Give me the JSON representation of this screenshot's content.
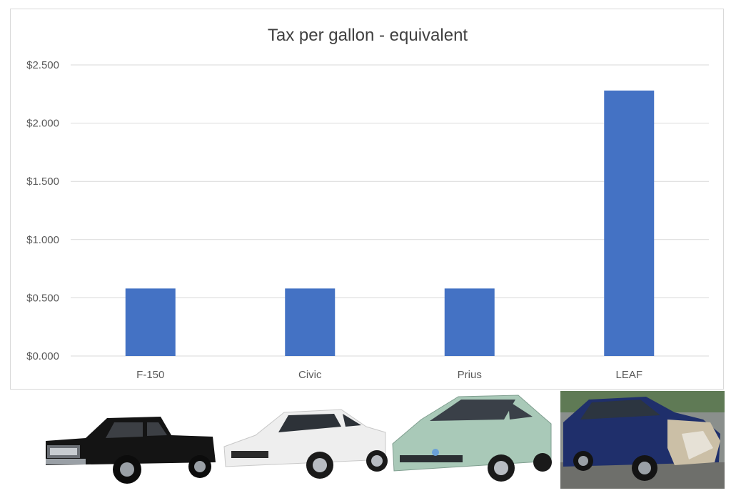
{
  "chart_data": {
    "type": "bar",
    "title": "Tax per gallon - equivalent",
    "xlabel": "",
    "ylabel": "",
    "categories": [
      "F-150",
      "Civic",
      "Prius",
      "LEAF"
    ],
    "values": [
      0.58,
      0.58,
      0.58,
      2.28
    ],
    "ylim": [
      0,
      2.5
    ],
    "yticks": [
      0,
      0.5,
      1.0,
      1.5,
      2.0,
      2.5
    ],
    "ytick_labels": [
      "$0.000",
      "$0.500",
      "$1.000",
      "$1.500",
      "$2.000",
      "$2.500"
    ],
    "grid": true,
    "legend": "none",
    "bar_color": "#4472C4"
  },
  "photos": [
    {
      "icon": "pickup-truck-photo",
      "color": "#111111"
    },
    {
      "icon": "white-sedan-photo",
      "color": "#f2f2f2"
    },
    {
      "icon": "green-hybrid-photo",
      "color": "#a9c9b8"
    },
    {
      "icon": "damaged-blue-ev-photo",
      "color": "#1f2f6b"
    }
  ]
}
